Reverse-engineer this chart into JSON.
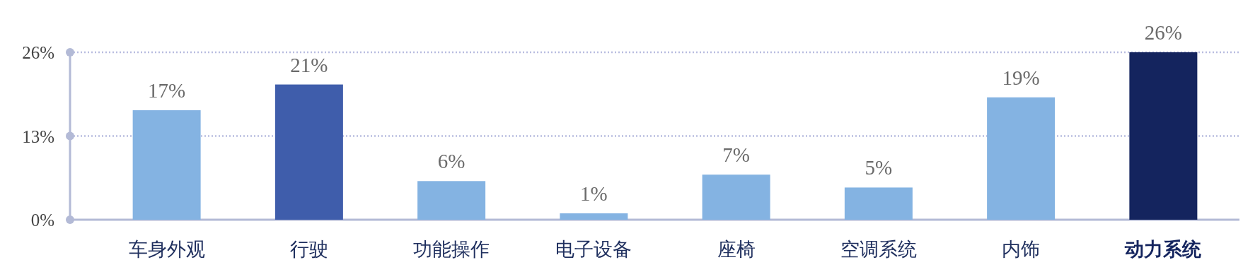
{
  "chart_data": {
    "type": "bar",
    "categories": [
      "车身外观",
      "行驶",
      "功能操作",
      "电子设备",
      "座椅",
      "空调系统",
      "内饰",
      "动力系统"
    ],
    "values": [
      17,
      21,
      6,
      1,
      7,
      5,
      19,
      26
    ],
    "colors": [
      "#84b3e2",
      "#3f5dab",
      "#84b3e2",
      "#84b3e2",
      "#84b3e2",
      "#84b3e2",
      "#84b3e2",
      "#14245e"
    ],
    "value_labels": [
      "17%",
      "21%",
      "6%",
      "1%",
      "7%",
      "5%",
      "19%",
      "26%"
    ],
    "ylim": [
      0,
      26
    ],
    "yticks": [
      {
        "value": 0,
        "label": "0%"
      },
      {
        "value": 13,
        "label": "13%"
      },
      {
        "value": 26,
        "label": "26%"
      }
    ],
    "grid": "y"
  }
}
